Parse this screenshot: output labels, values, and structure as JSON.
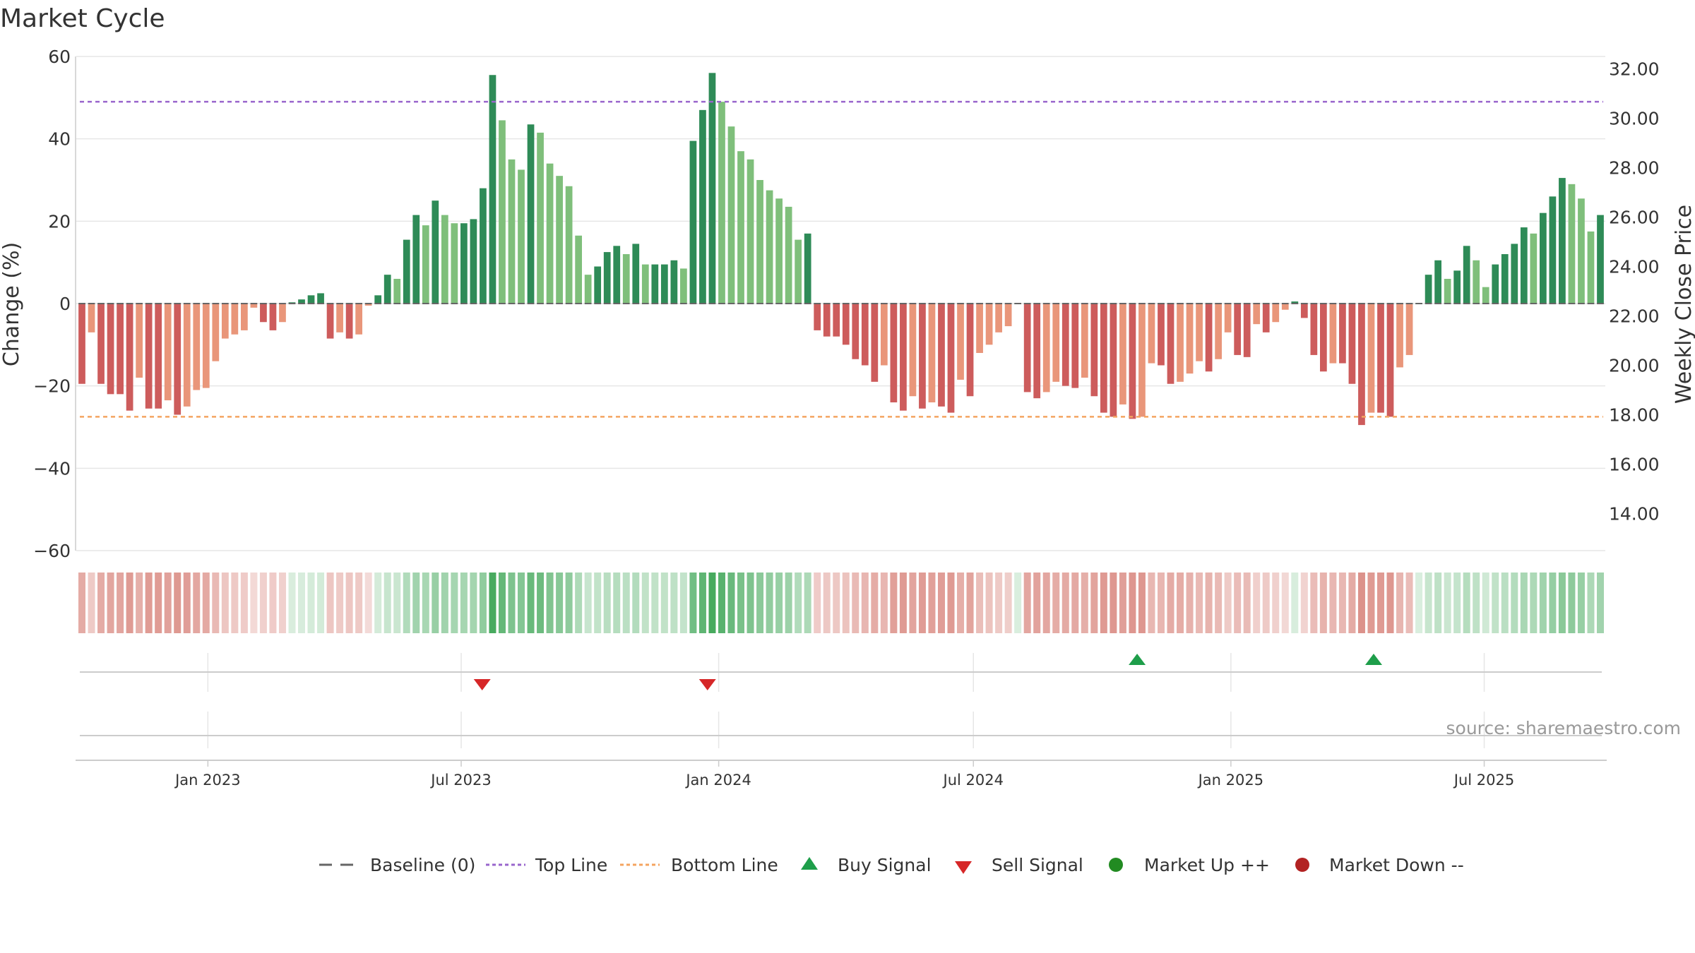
{
  "chart_data": {
    "type": "bar",
    "title": "Market Cycle",
    "ylabel": "Change (%)",
    "y2label": "Weekly Close Price",
    "ylim": [
      -60,
      60
    ],
    "y2lim": [
      12.5,
      32.5
    ],
    "yticks": [
      "60",
      "40",
      "20",
      "0",
      "−20",
      "−40",
      "−60"
    ],
    "y2ticks": [
      "32.00",
      "30.00",
      "28.00",
      "26.00",
      "24.00",
      "22.00",
      "20.00",
      "18.00",
      "16.00",
      "14.00"
    ],
    "top_line": 49,
    "bottom_line": -27.5,
    "x_start": "2022-10-03",
    "x_end": "2025-09-22",
    "x_ticks": [
      {
        "date": "2023-01-01",
        "label": "Jan 2023"
      },
      {
        "date": "2023-07-01",
        "label": "Jul 2023"
      },
      {
        "date": "2024-01-01",
        "label": "Jan 2024"
      },
      {
        "date": "2024-07-01",
        "label": "Jul 2024"
      },
      {
        "date": "2025-01-01",
        "label": "Jan 2025"
      },
      {
        "date": "2025-07-01",
        "label": "Jul 2025"
      }
    ],
    "weekly_change": [
      -19.5,
      -7,
      -19.5,
      -22,
      -22,
      -26,
      -18,
      -25.5,
      -25.5,
      -23.5,
      -27,
      -25,
      -21,
      -20.5,
      -14,
      -8.5,
      -7.5,
      -6.5,
      -1,
      -4.5,
      -6.5,
      -4.5,
      0.3,
      1,
      2,
      2.5,
      -8.5,
      -7,
      -8.5,
      -7.5,
      -0.5,
      2,
      7,
      6,
      15.5,
      21.5,
      19,
      25,
      21.5,
      19.5,
      19.5,
      20.5,
      28,
      55.5,
      44.5,
      35,
      32.5,
      43.5,
      41.5,
      34,
      31,
      28.5,
      16.5,
      7,
      9,
      12.5,
      14,
      12,
      14.5,
      9.5,
      9.5,
      9.5,
      10.5,
      8.5,
      39.5,
      47,
      56,
      49,
      43,
      37,
      35,
      30,
      27.5,
      25.5,
      23.5,
      15.5,
      17,
      -6.5,
      -8,
      -8,
      -10,
      -13.5,
      -15,
      -19,
      -15,
      -24,
      -26,
      -22.5,
      -25.5,
      -24,
      -25,
      -26.5,
      -18.5,
      -22.5,
      -12,
      -10,
      -7,
      -5.5,
      0,
      -21.5,
      -23,
      -21.5,
      -19,
      -20,
      -20.5,
      -18,
      -22.5,
      -26.5,
      -27.5,
      -24.5,
      -28,
      -27.5,
      -14.5,
      -15,
      -19.5,
      -19,
      -17,
      -14,
      -16.5,
      -13.5,
      -7,
      -12.5,
      -13,
      -5,
      -7,
      -4.5,
      -1.5,
      0.5,
      -3.5,
      -12.5,
      -16.5,
      -14.5,
      -14.5,
      -19.5,
      -29.5,
      -26.5,
      -26.5,
      -27.5,
      -15.5,
      -12.5,
      0,
      7,
      10.5,
      6,
      8,
      14,
      10.5,
      4,
      9.5,
      12,
      14.5,
      18.5,
      17,
      22,
      26,
      30.5,
      29,
      25.5,
      17.5,
      21.5
    ],
    "signals": [
      {
        "type": "sell",
        "date": "2023-07-16"
      },
      {
        "type": "sell",
        "date": "2023-12-24"
      },
      {
        "type": "buy",
        "date": "2024-10-26"
      },
      {
        "type": "buy",
        "date": "2025-04-13"
      }
    ]
  },
  "legend": {
    "baseline": "Baseline (0)",
    "top_line": "Top Line",
    "bottom_line": "Bottom Line",
    "buy_signal": "Buy Signal",
    "sell_signal": "Sell Signal",
    "market_up": "Market Up ++",
    "market_down": "Market Down --"
  },
  "source": "source: sharemaestro.com",
  "colors": {
    "green_strong": "#2e8b57",
    "green_light": "#7fbf7b",
    "red_strong": "#cd5c5c",
    "red_light": "#e9967a",
    "top_line": "#9966cc",
    "bottom_line": "#f4a460",
    "buy": "#1e9e4a",
    "sell": "#d62728",
    "market_up_dot": "#228b22",
    "market_down_dot": "#b22222"
  }
}
